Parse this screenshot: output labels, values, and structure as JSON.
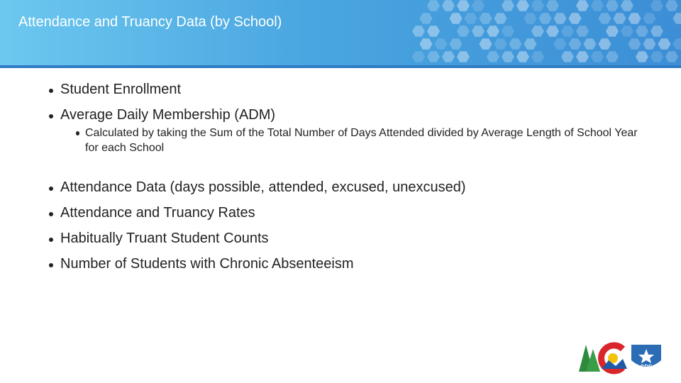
{
  "header": {
    "title": "Attendance and Truancy Data (by School)"
  },
  "bullets": [
    {
      "text": "Student Enrollment"
    },
    {
      "text": "Average Daily Membership (ADM)",
      "sub": [
        "Calculated by taking the Sum of the Total Number of Days Attended divided by Average Length of School Year for each School"
      ]
    },
    {
      "text": "Attendance Data (days possible, attended, excused, unexcused)"
    },
    {
      "text": "Attendance and Truancy Rates"
    },
    {
      "text": "Habitually Truant Student Counts"
    },
    {
      "text": "Number of Students with Chronic Absenteeism"
    }
  ],
  "logo": {
    "label": "CDE"
  }
}
